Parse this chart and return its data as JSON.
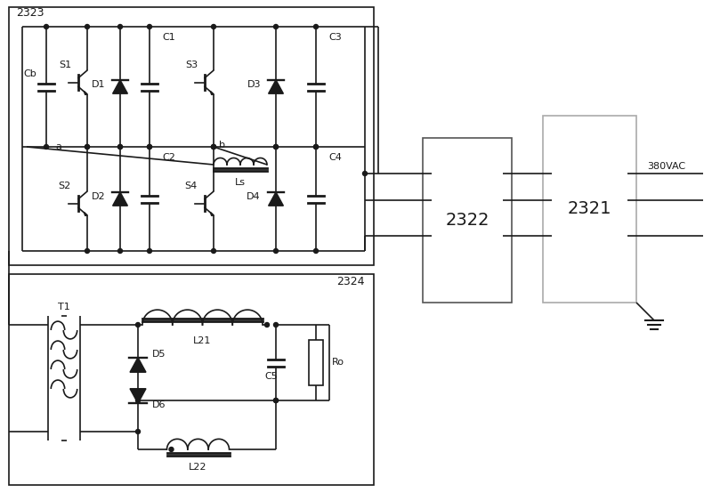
{
  "fig_width": 8.0,
  "fig_height": 5.54,
  "dpi": 100,
  "bg_color": "#ffffff",
  "line_color": "#1a1a1a",
  "line_width": 1.2,
  "box_2323_label": "2323",
  "box_2324_label": "2324",
  "box_2322_label": "2322",
  "box_2321_label": "2321",
  "label_380VAC": "380VAC",
  "label_Ls": "Ls",
  "label_L21": "L21",
  "label_L22": "L22",
  "label_T1": "T1",
  "label_Cb": "Cb",
  "label_a": "a",
  "label_b": "b",
  "label_S1": "S1",
  "label_S2": "S2",
  "label_S3": "S3",
  "label_S4": "S4",
  "label_D1": "D1",
  "label_D2": "D2",
  "label_D3": "D3",
  "label_D4": "D4",
  "label_D5": "D5",
  "label_D6": "D6",
  "label_C1": "C1",
  "label_C2": "C2",
  "label_C3": "C3",
  "label_C4": "C4",
  "label_C5": "C5",
  "label_Ro": "Ro"
}
